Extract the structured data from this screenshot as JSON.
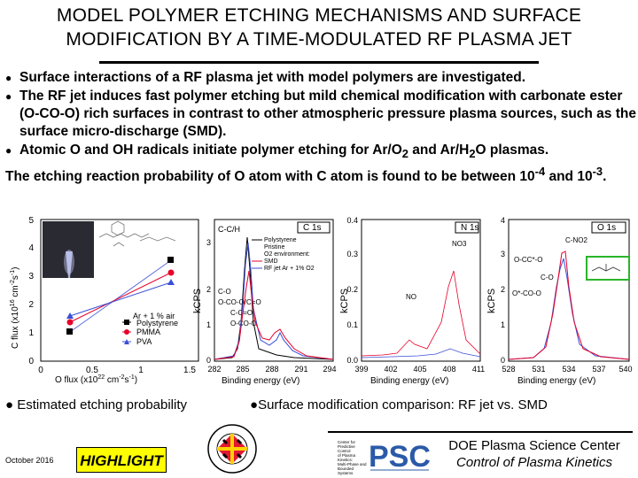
{
  "title": {
    "line1": "MODEL POLYMER ETCHING MECHANISMS AND SURFACE",
    "line2": "MODIFICATION BY A TIME-MODULATED RF PLASMA JET"
  },
  "bullets": [
    "Surface interactions of a RF plasma jet with model polymers are investigated.",
    "The RF jet induces fast polymer etching but mild chemical modification with carbonate ester (O-CO-O) rich surfaces in contrast to other atmospheric pressure plasma sources, such as the surface micro-discharge (SMD).",
    "Atomic O and OH radicals initiate polymer etching for Ar/O",
    "The etching reaction probability of O atom with C atom is found to be between 10"
  ],
  "bullet3_parts": {
    "a": "Atomic O and OH radicals initiate polymer etching for Ar/O",
    "sub1": "2",
    "b": " and Ar/H",
    "sub2": "2",
    "c": "O plasmas."
  },
  "bullet4_parts": {
    "a": "The etching reaction probability of O atom with C atom is found to be between 10",
    "sup1": "-4",
    "b": " and 10",
    "sup2": "-3",
    "c": "."
  },
  "figure1": {
    "ylabel": "C flux (x10",
    "xlabel": "O flux (x10",
    "yticks": [
      "0",
      "1",
      "2",
      "3",
      "4",
      "5"
    ],
    "xticks": [
      "0",
      "0.5",
      "1",
      "1.5"
    ],
    "legend_title": "Ar + 1 % air",
    "legend": [
      "Polystyrene",
      "PMMA",
      "PVA"
    ],
    "colors": {
      "polystyrene": "#000000",
      "pmma": "#e8002a",
      "pva": "#3a4fd8"
    }
  },
  "figure2": {
    "panels": [
      {
        "label": "C 1s",
        "xticks": [
          "282",
          "285",
          "288",
          "291",
          "294"
        ],
        "yticks": [
          "0",
          "1",
          "2",
          "3"
        ],
        "annotations": [
          "C-C/H",
          "C-O",
          "O-CO-O/C=O",
          "C-C=O",
          "O-CO-O",
          "O-CO-O/C=O"
        ]
      },
      {
        "label": "N 1s",
        "xticks": [
          "399",
          "402",
          "405",
          "408",
          "411"
        ],
        "yticks": [
          "0.0",
          "0.1",
          "0.2",
          "0.3",
          "0.4"
        ],
        "annotations": [
          "NO3",
          "NO"
        ]
      },
      {
        "label": "O 1s",
        "xticks": [
          "528",
          "531",
          "534",
          "537",
          "540"
        ],
        "yticks": [
          "0",
          "1",
          "2",
          "3",
          "4"
        ],
        "annotations": [
          "C-NO2",
          "O-CC*-O",
          "C-O",
          "O*-CO-O"
        ]
      }
    ],
    "ylabel": "kCPS",
    "xlabel": "Binding energy (eV)",
    "legend": [
      "Polystyrene",
      "Pristine",
      "O2 environment:",
      "SMD",
      "RF jet Ar + 1% O2"
    ]
  },
  "captions": {
    "left": "Estimated etching probability",
    "right": "Surface modification comparison: RF jet vs. SMD"
  },
  "footer": {
    "date": "October 2016",
    "highlight": "HIGHLIGHT",
    "seal_text": "UNIVERSITY OF MARYLAND",
    "center_text": [
      "Center for",
      "Predictive Control",
      "of Plasma Kinetics:",
      "Multi-Phase and",
      "Bounded Systems"
    ],
    "psc": "PSC",
    "doe_line1": "DOE Plasma Science Center",
    "doe_line2": "Control of Plasma Kinetics"
  }
}
